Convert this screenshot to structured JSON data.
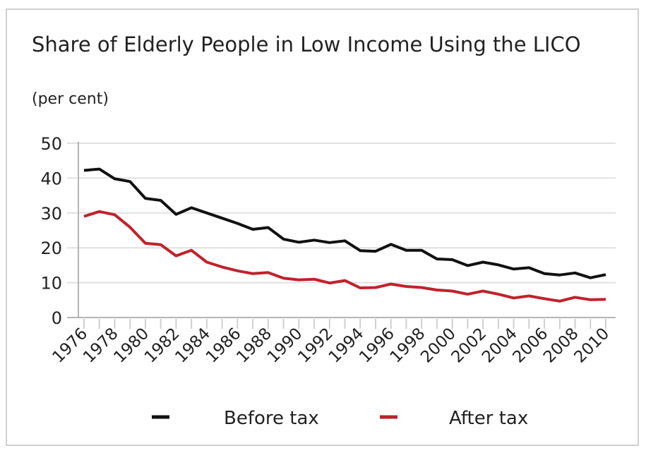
{
  "chart_data": {
    "type": "line",
    "title": "Share of Elderly People in Low Income Using the LICO",
    "subtitle": "(per cent)",
    "xlabel": "",
    "ylabel": "per cent",
    "ylim": [
      0,
      50
    ],
    "yticks": [
      "0",
      "10",
      "20",
      "30",
      "40",
      "50"
    ],
    "grid": true,
    "legend_position": "bottom",
    "x": [
      1976,
      1977,
      1978,
      1979,
      1980,
      1981,
      1982,
      1983,
      1984,
      1985,
      1986,
      1987,
      1988,
      1989,
      1990,
      1991,
      1992,
      1993,
      1994,
      1995,
      1996,
      1997,
      1998,
      1999,
      2000,
      2001,
      2002,
      2003,
      2004,
      2005,
      2006,
      2007,
      2008,
      2009,
      2010
    ],
    "xtick_labels": [
      "1976",
      "1978",
      "1980",
      "1982",
      "1984",
      "1986",
      "1988",
      "1990",
      "1992",
      "1994",
      "1996",
      "1998",
      "2000",
      "2002",
      "2004",
      "2006",
      "2008",
      "2010"
    ],
    "series": [
      {
        "name": "Before tax",
        "color": "#111111",
        "values": [
          42.2,
          42.6,
          39.8,
          39.0,
          34.2,
          33.6,
          29.6,
          31.5,
          30.0,
          28.5,
          27.0,
          25.3,
          25.8,
          22.5,
          21.6,
          22.2,
          21.5,
          22.0,
          19.2,
          19.0,
          21.0,
          19.3,
          19.3,
          16.8,
          16.6,
          14.9,
          15.9,
          15.1,
          13.9,
          14.3,
          12.6,
          12.2,
          12.8,
          11.4,
          12.3
        ]
      },
      {
        "name": "After tax",
        "color": "#c0222c",
        "values": [
          29.0,
          30.4,
          29.5,
          25.9,
          21.3,
          20.9,
          17.7,
          19.3,
          15.9,
          14.5,
          13.4,
          12.6,
          12.9,
          11.3,
          10.8,
          11.0,
          9.9,
          10.6,
          8.5,
          8.6,
          9.6,
          8.9,
          8.6,
          7.9,
          7.6,
          6.7,
          7.6,
          6.7,
          5.6,
          6.2,
          5.4,
          4.7,
          5.8,
          5.1,
          5.2
        ]
      }
    ]
  }
}
